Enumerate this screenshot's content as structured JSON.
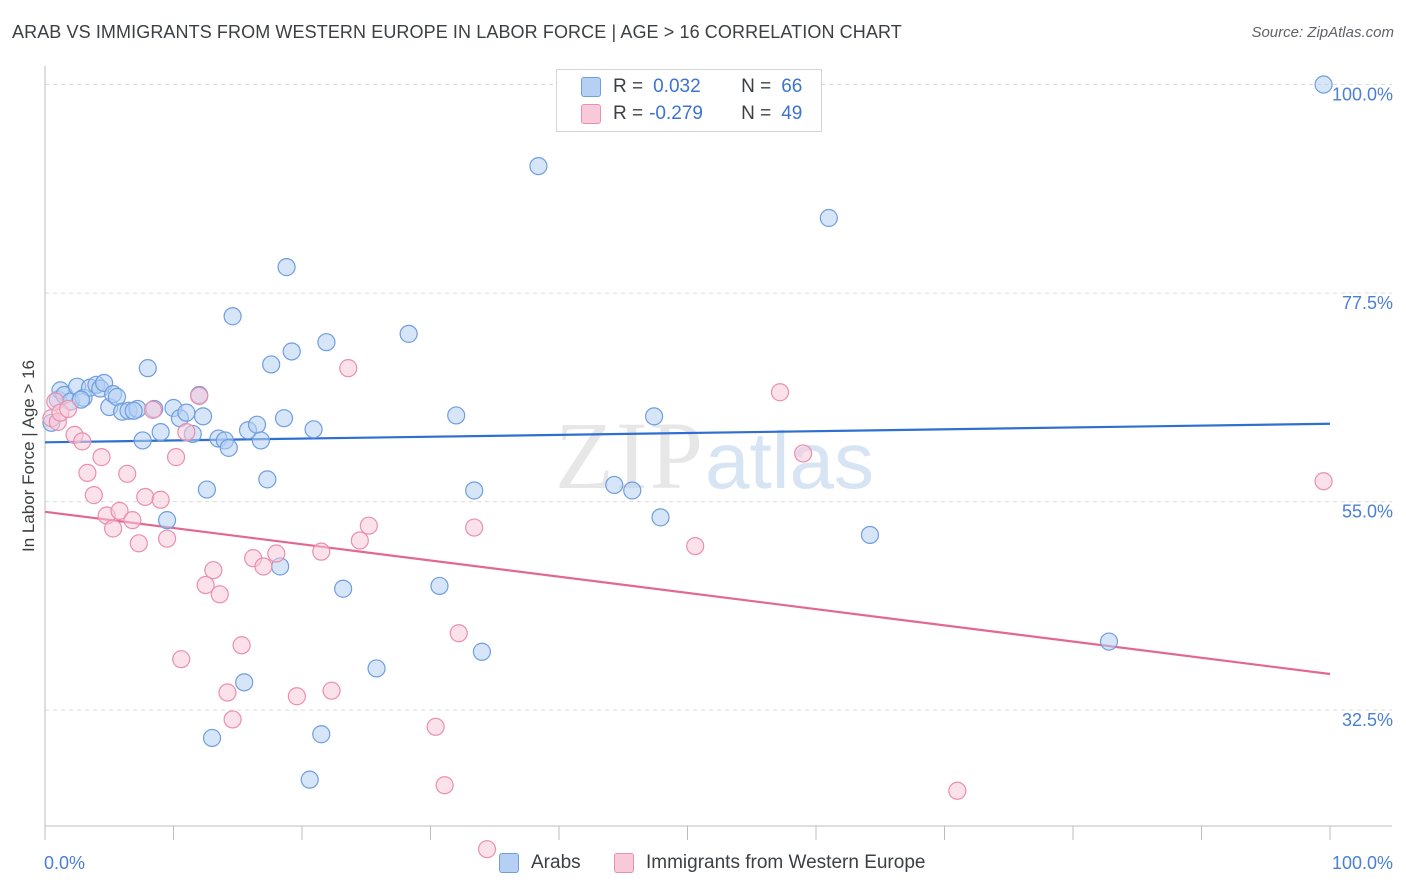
{
  "title": "ARAB VS IMMIGRANTS FROM WESTERN EUROPE IN LABOR FORCE | AGE > 16 CORRELATION CHART",
  "source": "Source: ZipAtlas.com",
  "watermark": {
    "zip": "ZIP",
    "atlas": "atlas"
  },
  "legend": {
    "r_label": "R =",
    "n_label": "N =",
    "rows": [
      {
        "r": "0.032",
        "n": "66",
        "fill": "#b5d0f3",
        "stroke": "#6f9ee0"
      },
      {
        "r": "-0.279",
        "n": "49",
        "fill": "#f8c9d8",
        "stroke": "#ea8fae"
      }
    ]
  },
  "bottom_legend": [
    "Arabs",
    "Immigrants from Western Europe"
  ],
  "chart_data": {
    "type": "scatter",
    "title": "ARAB VS IMMIGRANTS FROM WESTERN EUROPE IN LABOR FORCE | AGE > 16 CORRELATION CHART",
    "ylabel": "In Labor Force | Age > 16",
    "xlabel": "",
    "xlim": [
      0,
      100
    ],
    "ylim": [
      20,
      102
    ],
    "x_tick_labels": [
      "0.0%",
      "100.0%"
    ],
    "y_ticks": [
      {
        "value": 100,
        "label": "100.0%"
      },
      {
        "value": 77.5,
        "label": "77.5%"
      },
      {
        "value": 55,
        "label": "55.0%"
      },
      {
        "value": 32.5,
        "label": "32.5%"
      }
    ],
    "grid": "horizontal-dashed",
    "series": [
      {
        "name": "Arabs",
        "color": "#6f9ee0",
        "fill": "#b5d0f3",
        "trend": {
          "x": [
            0,
            100
          ],
          "y": [
            61.4,
            63.4
          ]
        },
        "points": [
          [
            0.5,
            63.5
          ],
          [
            1.0,
            66.0
          ],
          [
            1.2,
            67.0
          ],
          [
            1.5,
            66.5
          ],
          [
            2.0,
            65.8
          ],
          [
            2.5,
            67.4
          ],
          [
            3.0,
            66.2
          ],
          [
            3.5,
            67.3
          ],
          [
            4.0,
            67.6
          ],
          [
            4.3,
            67.2
          ],
          [
            4.6,
            67.8
          ],
          [
            5.0,
            65.2
          ],
          [
            5.3,
            66.6
          ],
          [
            5.6,
            66.3
          ],
          [
            6.0,
            64.7
          ],
          [
            6.5,
            64.8
          ],
          [
            7.2,
            65.0
          ],
          [
            7.6,
            61.6
          ],
          [
            8.0,
            69.4
          ],
          [
            8.5,
            65.0
          ],
          [
            9.0,
            62.5
          ],
          [
            9.5,
            53.0
          ],
          [
            10.0,
            65.1
          ],
          [
            10.5,
            64.0
          ],
          [
            11.0,
            64.6
          ],
          [
            11.5,
            62.3
          ],
          [
            12.0,
            66.5
          ],
          [
            12.3,
            64.2
          ],
          [
            12.6,
            56.3
          ],
          [
            13.5,
            61.8
          ],
          [
            14.0,
            61.6
          ],
          [
            14.3,
            60.8
          ],
          [
            14.6,
            75.0
          ],
          [
            15.5,
            35.5
          ],
          [
            15.8,
            62.7
          ],
          [
            16.5,
            63.3
          ],
          [
            16.8,
            61.6
          ],
          [
            17.3,
            57.4
          ],
          [
            17.6,
            69.8
          ],
          [
            18.3,
            48.0
          ],
          [
            18.6,
            64.0
          ],
          [
            18.8,
            80.3
          ],
          [
            19.2,
            71.2
          ],
          [
            20.6,
            25.0
          ],
          [
            20.9,
            62.8
          ],
          [
            21.5,
            29.9
          ],
          [
            21.9,
            72.2
          ],
          [
            23.2,
            45.6
          ],
          [
            25.8,
            37.0
          ],
          [
            28.3,
            73.1
          ],
          [
            30.7,
            45.9
          ],
          [
            32.0,
            64.3
          ],
          [
            33.4,
            56.2
          ],
          [
            34.0,
            38.8
          ],
          [
            38.4,
            91.2
          ],
          [
            44.3,
            56.8
          ],
          [
            45.7,
            56.2
          ],
          [
            47.4,
            64.2
          ],
          [
            47.9,
            53.3
          ],
          [
            61.0,
            85.6
          ],
          [
            64.2,
            51.4
          ],
          [
            82.8,
            39.9
          ],
          [
            99.5,
            100.0
          ],
          [
            13.0,
            29.5
          ],
          [
            6.9,
            64.8
          ],
          [
            2.8,
            66.0
          ]
        ]
      },
      {
        "name": "Immigrants from Western Europe",
        "color": "#ea8fae",
        "fill": "#f8c9d8",
        "trend": {
          "x": [
            0,
            100
          ],
          "y": [
            53.9,
            36.4
          ]
        },
        "points": [
          [
            0.5,
            64.0
          ],
          [
            0.8,
            65.8
          ],
          [
            1.0,
            63.6
          ],
          [
            1.2,
            64.6
          ],
          [
            1.8,
            65.0
          ],
          [
            2.3,
            62.2
          ],
          [
            2.9,
            61.5
          ],
          [
            3.3,
            58.1
          ],
          [
            3.8,
            55.7
          ],
          [
            4.4,
            59.8
          ],
          [
            4.8,
            53.5
          ],
          [
            5.3,
            52.1
          ],
          [
            5.8,
            54.0
          ],
          [
            6.4,
            58.0
          ],
          [
            6.8,
            53.0
          ],
          [
            7.3,
            50.5
          ],
          [
            7.8,
            55.5
          ],
          [
            8.4,
            64.9
          ],
          [
            9.0,
            55.2
          ],
          [
            9.5,
            51.0
          ],
          [
            10.2,
            59.8
          ],
          [
            10.6,
            38.0
          ],
          [
            11.0,
            62.5
          ],
          [
            12.0,
            66.4
          ],
          [
            12.5,
            46.0
          ],
          [
            13.1,
            47.6
          ],
          [
            13.6,
            45.0
          ],
          [
            14.2,
            34.4
          ],
          [
            14.6,
            31.5
          ],
          [
            15.3,
            39.5
          ],
          [
            16.2,
            48.9
          ],
          [
            17.0,
            48.0
          ],
          [
            18.0,
            49.4
          ],
          [
            19.6,
            34.0
          ],
          [
            21.5,
            49.6
          ],
          [
            22.3,
            34.6
          ],
          [
            23.6,
            69.4
          ],
          [
            24.5,
            50.8
          ],
          [
            25.2,
            52.4
          ],
          [
            30.4,
            30.7
          ],
          [
            31.1,
            24.4
          ],
          [
            32.2,
            40.8
          ],
          [
            33.4,
            52.2
          ],
          [
            34.4,
            17.5
          ],
          [
            50.6,
            50.2
          ],
          [
            57.2,
            66.8
          ],
          [
            59.0,
            60.2
          ],
          [
            71.0,
            23.8
          ],
          [
            99.5,
            57.2
          ]
        ]
      }
    ]
  }
}
